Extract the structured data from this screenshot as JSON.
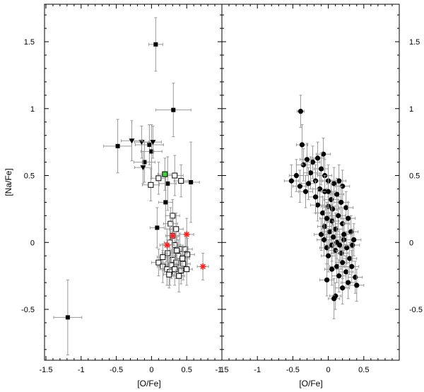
{
  "chart_data": {
    "type": "scatter",
    "xlabel": "[O/Fe]",
    "ylabel": "[Na/Fe]",
    "ylim": [
      -0.88,
      1.78
    ],
    "y_ticks": [
      "1.5",
      "1",
      "0.5",
      "0",
      "-0.5"
    ],
    "y_tick_values": [
      1.5,
      1.0,
      0.5,
      0.0,
      -0.5
    ],
    "grid": false,
    "colors": {
      "errorbar": "#999999",
      "filled": "#000000",
      "open_fill": "#ffffff",
      "star": "#ff2020",
      "highlight": "#40d040"
    },
    "panels": [
      {
        "xlim": [
          -1.52,
          1.0
        ],
        "x_ticks": [
          "-1.5",
          "-1",
          "-0.5",
          "0",
          "0.5",
          "1"
        ],
        "x_tick_values": [
          -1.5,
          -1.0,
          -0.5,
          0.0,
          0.5,
          1.0
        ],
        "series": [
          {
            "marker": "filled-square",
            "points": [
              [
                0.06,
                1.48,
                0.1,
                0.2
              ],
              [
                0.31,
                0.99,
                0.25,
                0.2
              ],
              [
                -0.48,
                0.72,
                0.2,
                0.2
              ],
              [
                -0.03,
                0.73,
                0.2,
                0.15
              ],
              [
                0.0,
                0.68,
                0.15,
                0.2
              ],
              [
                -0.1,
                0.6,
                0.15,
                0.15
              ],
              [
                0.23,
                0.44,
                0.12,
                0.2
              ],
              [
                0.56,
                0.45,
                0.12,
                0.3
              ],
              [
                0.2,
                0.3,
                0.1,
                0.2
              ],
              [
                0.08,
                0.11,
                0.1,
                0.15
              ],
              [
                -1.19,
                -0.56,
                0.2,
                0.28
              ]
            ]
          },
          {
            "marker": "filled-triangle-down",
            "points": [
              [
                -0.14,
                0.75,
                0.1,
                0.12
              ],
              [
                -0.28,
                0.76,
                0.15,
                0.15
              ],
              [
                0.02,
                0.75,
                0.12,
                0.12
              ],
              [
                -0.12,
                0.56,
                0.12,
                0.12
              ]
            ]
          },
          {
            "marker": "open-square",
            "points": [
              [
                -0.01,
                0.43,
                0.12,
                0.12
              ],
              [
                0.1,
                0.48,
                0.1,
                0.12
              ],
              [
                0.33,
                0.5,
                0.12,
                0.15
              ],
              [
                0.42,
                0.46,
                0.1,
                0.12
              ],
              [
                0.3,
                0.2,
                0.1,
                0.12
              ],
              [
                0.27,
                0.14,
                0.1,
                0.12
              ],
              [
                0.35,
                0.1,
                0.1,
                0.12
              ],
              [
                0.3,
                0.05,
                0.08,
                0.1
              ],
              [
                0.26,
                0.0,
                0.08,
                0.12
              ],
              [
                0.33,
                -0.02,
                0.08,
                0.1
              ],
              [
                0.4,
                -0.05,
                0.1,
                0.12
              ],
              [
                0.23,
                -0.08,
                0.08,
                0.1
              ],
              [
                0.38,
                -0.1,
                0.08,
                0.12
              ],
              [
                0.48,
                -0.05,
                0.1,
                0.12
              ],
              [
                0.51,
                -0.09,
                0.1,
                0.12
              ],
              [
                0.3,
                -0.13,
                0.08,
                0.12
              ],
              [
                0.35,
                -0.15,
                0.1,
                0.12
              ],
              [
                0.28,
                -0.17,
                0.08,
                0.1
              ],
              [
                0.45,
                -0.16,
                0.1,
                0.12
              ],
              [
                0.1,
                -0.15,
                0.1,
                0.1
              ],
              [
                0.16,
                -0.18,
                0.08,
                0.12
              ],
              [
                0.22,
                -0.2,
                0.1,
                0.12
              ],
              [
                0.26,
                -0.22,
                0.08,
                0.1
              ],
              [
                0.33,
                -0.2,
                0.08,
                0.12
              ],
              [
                0.42,
                -0.21,
                0.08,
                0.1
              ],
              [
                0.5,
                -0.2,
                0.08,
                0.12
              ],
              [
                0.39,
                -0.25,
                0.08,
                0.12
              ],
              [
                0.25,
                -0.24,
                0.08,
                0.1
              ],
              [
                0.16,
                -0.11,
                0.08,
                0.1
              ],
              [
                0.44,
                -0.12,
                0.1,
                0.1
              ],
              [
                0.36,
                -0.06,
                0.08,
                0.1
              ]
            ]
          },
          {
            "marker": "red-asterisk",
            "points": [
              [
                0.3,
                0.05,
                0.1,
                0.12
              ],
              [
                0.5,
                0.06,
                0.1,
                0.12
              ],
              [
                0.22,
                -0.02,
                0.1,
                0.12
              ],
              [
                0.73,
                -0.18,
                0.08,
                0.1
              ]
            ]
          },
          {
            "marker": "green-square",
            "points": [
              [
                0.19,
                0.51,
                0.1,
                0.12
              ]
            ]
          }
        ]
      },
      {
        "xlim": [
          -1.5,
          1.0
        ],
        "x_ticks": [
          "-1.5",
          "-1",
          "-0.5",
          "0",
          "0.5"
        ],
        "x_tick_values": [
          -1.5,
          -1.0,
          -0.5,
          0.0,
          0.5
        ],
        "series": [
          {
            "marker": "filled-circle",
            "points": [
              [
                -0.39,
                0.98,
                0.05,
                0.12
              ],
              [
                -0.52,
                0.46,
                0.1,
                0.12
              ],
              [
                -0.45,
                0.5,
                0.1,
                0.12
              ],
              [
                -0.4,
                0.42,
                0.1,
                0.12
              ],
              [
                -0.35,
                0.58,
                0.1,
                0.12
              ],
              [
                -0.37,
                0.73,
                0.08,
                0.15
              ],
              [
                -0.3,
                0.62,
                0.1,
                0.12
              ],
              [
                -0.22,
                0.6,
                0.1,
                0.12
              ],
              [
                -0.15,
                0.63,
                0.1,
                0.12
              ],
              [
                -0.07,
                0.66,
                0.1,
                0.12
              ],
              [
                -0.25,
                0.52,
                0.1,
                0.12
              ],
              [
                -0.18,
                0.46,
                0.1,
                0.12
              ],
              [
                -0.32,
                0.38,
                0.1,
                0.12
              ],
              [
                -0.28,
                0.44,
                0.1,
                0.12
              ],
              [
                -0.1,
                0.55,
                0.1,
                0.12
              ],
              [
                -0.05,
                0.5,
                0.1,
                0.12
              ],
              [
                0.0,
                0.46,
                0.1,
                0.12
              ],
              [
                -0.12,
                0.4,
                0.1,
                0.12
              ],
              [
                -0.05,
                0.38,
                0.1,
                0.12
              ],
              [
                0.08,
                0.44,
                0.1,
                0.12
              ],
              [
                0.15,
                0.46,
                0.1,
                0.12
              ],
              [
                0.2,
                0.42,
                0.1,
                0.12
              ],
              [
                0.12,
                0.36,
                0.1,
                0.12
              ],
              [
                0.04,
                0.32,
                0.1,
                0.12
              ],
              [
                -0.15,
                0.28,
                0.1,
                0.12
              ],
              [
                -0.08,
                0.22,
                0.1,
                0.12
              ],
              [
                0.0,
                0.27,
                0.1,
                0.12
              ],
              [
                0.06,
                0.25,
                0.1,
                0.12
              ],
              [
                0.18,
                0.3,
                0.1,
                0.12
              ],
              [
                0.25,
                0.26,
                0.1,
                0.12
              ],
              [
                0.14,
                0.2,
                0.1,
                0.12
              ],
              [
                0.05,
                0.16,
                0.1,
                0.12
              ],
              [
                -0.05,
                0.12,
                0.1,
                0.12
              ],
              [
                -0.1,
                0.06,
                0.1,
                0.12
              ],
              [
                0.02,
                0.08,
                0.1,
                0.12
              ],
              [
                0.1,
                0.1,
                0.1,
                0.12
              ],
              [
                0.2,
                0.14,
                0.1,
                0.12
              ],
              [
                0.28,
                0.18,
                0.1,
                0.12
              ],
              [
                0.32,
                0.08,
                0.1,
                0.12
              ],
              [
                0.22,
                0.02,
                0.1,
                0.12
              ],
              [
                0.12,
                0.0,
                0.1,
                0.12
              ],
              [
                0.05,
                -0.02,
                0.1,
                0.12
              ],
              [
                -0.02,
                -0.04,
                0.1,
                0.12
              ],
              [
                0.0,
                -0.1,
                0.1,
                0.12
              ],
              [
                0.1,
                -0.06,
                0.1,
                0.12
              ],
              [
                0.18,
                -0.08,
                0.1,
                0.12
              ],
              [
                0.26,
                -0.04,
                0.1,
                0.12
              ],
              [
                0.34,
                -0.02,
                0.1,
                0.12
              ],
              [
                0.3,
                -0.12,
                0.1,
                0.12
              ],
              [
                0.2,
                -0.15,
                0.1,
                0.12
              ],
              [
                0.12,
                -0.18,
                0.1,
                0.12
              ],
              [
                0.05,
                -0.2,
                0.1,
                0.12
              ],
              [
                0.15,
                -0.25,
                0.1,
                0.12
              ],
              [
                0.25,
                -0.22,
                0.1,
                0.12
              ],
              [
                0.33,
                -0.18,
                0.1,
                0.12
              ],
              [
                0.38,
                -0.26,
                0.1,
                0.12
              ],
              [
                0.28,
                -0.3,
                0.1,
                0.12
              ],
              [
                0.2,
                -0.34,
                0.1,
                0.12
              ],
              [
                0.4,
                -0.32,
                0.1,
                0.12
              ],
              [
                0.1,
                -0.4,
                0.08,
                0.1
              ],
              [
                0.08,
                -0.42,
                0.08,
                0.15
              ],
              [
                -0.02,
                -0.28,
                0.1,
                0.12
              ],
              [
                0.0,
                0.38,
                0.1,
                0.12
              ],
              [
                -0.18,
                0.34,
                0.1,
                0.12
              ],
              [
                0.22,
                0.06,
                0.1,
                0.12
              ],
              [
                0.36,
                0.02,
                0.1,
                0.12
              ],
              [
                -0.02,
                0.18,
                0.1,
                0.12
              ],
              [
                0.16,
                -0.02,
                0.1,
                0.12
              ],
              [
                0.07,
                0.04,
                0.1,
                0.12
              ],
              [
                -0.06,
                0.02,
                0.1,
                0.12
              ]
            ]
          }
        ]
      }
    ]
  }
}
